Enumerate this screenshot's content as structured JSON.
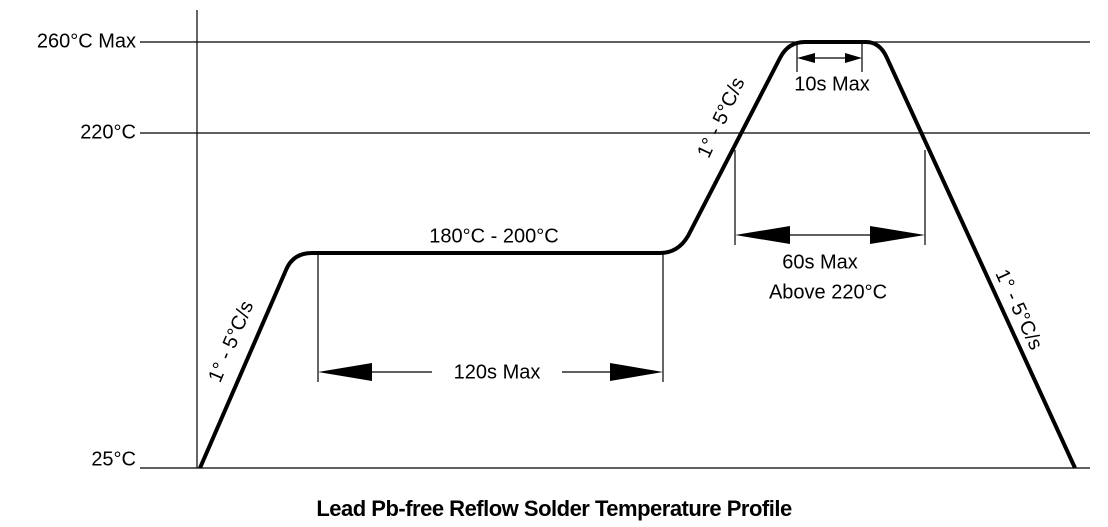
{
  "y_axis_labels": [
    "260°C Max",
    "220°C",
    "25°C"
  ],
  "annotations": {
    "ramp_up": "1° - 5°C/s",
    "soak_temp": "180°C - 200°C",
    "soak_time": "120s Max",
    "ramp_to_peak": "1° - 5°C/s",
    "peak_time": "10s Max",
    "above_time": "60s Max",
    "above_temp": "Above 220°C",
    "ramp_down": "1° - 5°C/s"
  },
  "title": "Lead Pb-free Reflow Solder Temperature Profile"
}
